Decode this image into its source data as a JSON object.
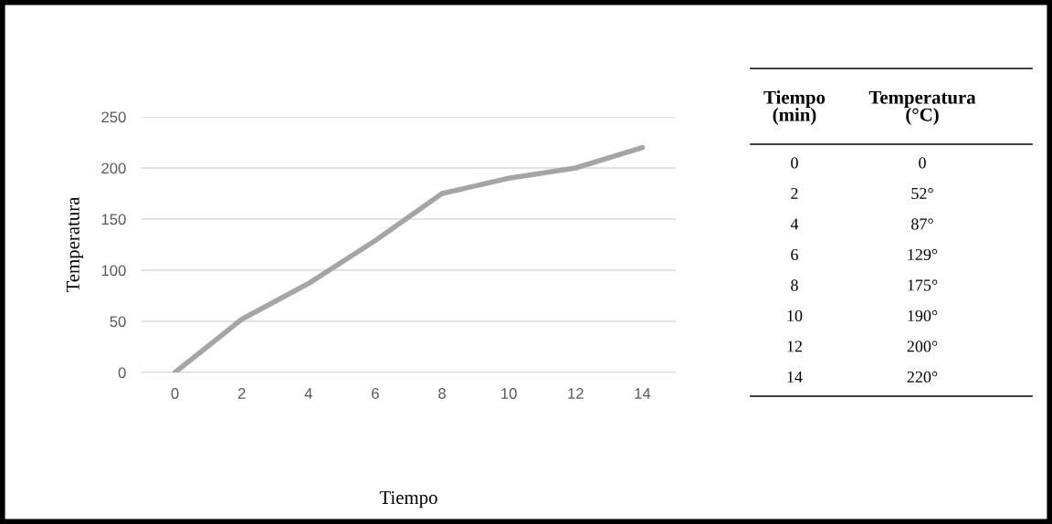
{
  "chart_data": {
    "type": "line",
    "xlabel": "Tiempo",
    "ylabel": "Temperatura",
    "categories": [
      "0",
      "2",
      "4",
      "6",
      "8",
      "10",
      "12",
      "14"
    ],
    "series": [
      {
        "color": "#a5a5a5",
        "values": [
          0,
          52,
          87,
          129,
          175,
          190,
          200,
          220
        ]
      }
    ],
    "value_labels": [
      "0",
      "52°",
      "87°",
      "129°",
      "175°",
      "190°",
      "200°",
      "220°"
    ],
    "annotations": [
      "Tiempo\n(min)",
      "Temperatura\n(°C)"
    ],
    "ylim": [
      0,
      250
    ],
    "yticks": [
      0,
      50,
      100,
      150,
      200,
      250
    ],
    "grid": "y",
    "marker": "none",
    "line_style": "solid"
  }
}
